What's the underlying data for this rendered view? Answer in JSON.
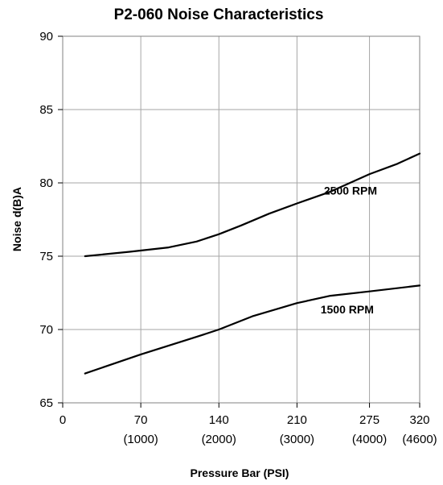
{
  "chart_data": {
    "type": "line",
    "title": "P2-060 Noise Characteristics",
    "xlabel": "Pressure Bar (PSI)",
    "ylabel": "Noise d(B)A",
    "xlim": [
      0,
      320
    ],
    "ylim": [
      65,
      90
    ],
    "x_ticks": [
      {
        "value": 0,
        "label": "0",
        "sublabel": ""
      },
      {
        "value": 70,
        "label": "70",
        "sublabel": "(1000)"
      },
      {
        "value": 140,
        "label": "140",
        "sublabel": "(2000)"
      },
      {
        "value": 210,
        "label": "210",
        "sublabel": "(3000)"
      },
      {
        "value": 275,
        "label": "275",
        "sublabel": "(4000)"
      },
      {
        "value": 320,
        "label": "320",
        "sublabel": "(4600)"
      }
    ],
    "y_ticks": [
      {
        "value": 65,
        "label": "65"
      },
      {
        "value": 70,
        "label": "70"
      },
      {
        "value": 75,
        "label": "75"
      },
      {
        "value": 80,
        "label": "80"
      },
      {
        "value": 85,
        "label": "85"
      },
      {
        "value": 90,
        "label": "90"
      }
    ],
    "grid": true,
    "series": [
      {
        "name": "2500 RPM",
        "color": "#000000",
        "points": [
          {
            "x": 20,
            "y": 75.0
          },
          {
            "x": 60,
            "y": 75.3
          },
          {
            "x": 95,
            "y": 75.6
          },
          {
            "x": 120,
            "y": 76.0
          },
          {
            "x": 140,
            "y": 76.5
          },
          {
            "x": 160,
            "y": 77.1
          },
          {
            "x": 185,
            "y": 77.9
          },
          {
            "x": 210,
            "y": 78.6
          },
          {
            "x": 240,
            "y": 79.4
          },
          {
            "x": 275,
            "y": 80.6
          },
          {
            "x": 300,
            "y": 81.3
          },
          {
            "x": 320,
            "y": 82.0
          }
        ]
      },
      {
        "name": "1500 RPM",
        "color": "#000000",
        "points": [
          {
            "x": 20,
            "y": 67.0
          },
          {
            "x": 70,
            "y": 68.3
          },
          {
            "x": 120,
            "y": 69.5
          },
          {
            "x": 140,
            "y": 70.0
          },
          {
            "x": 170,
            "y": 70.9
          },
          {
            "x": 210,
            "y": 71.8
          },
          {
            "x": 240,
            "y": 72.3
          },
          {
            "x": 275,
            "y": 72.6
          },
          {
            "x": 320,
            "y": 73.0
          }
        ]
      }
    ],
    "annotations": [
      {
        "text": "2500 RPM",
        "x": 258,
        "y": 79.2
      },
      {
        "text": "1500 RPM",
        "x": 255,
        "y": 71.1
      }
    ]
  }
}
